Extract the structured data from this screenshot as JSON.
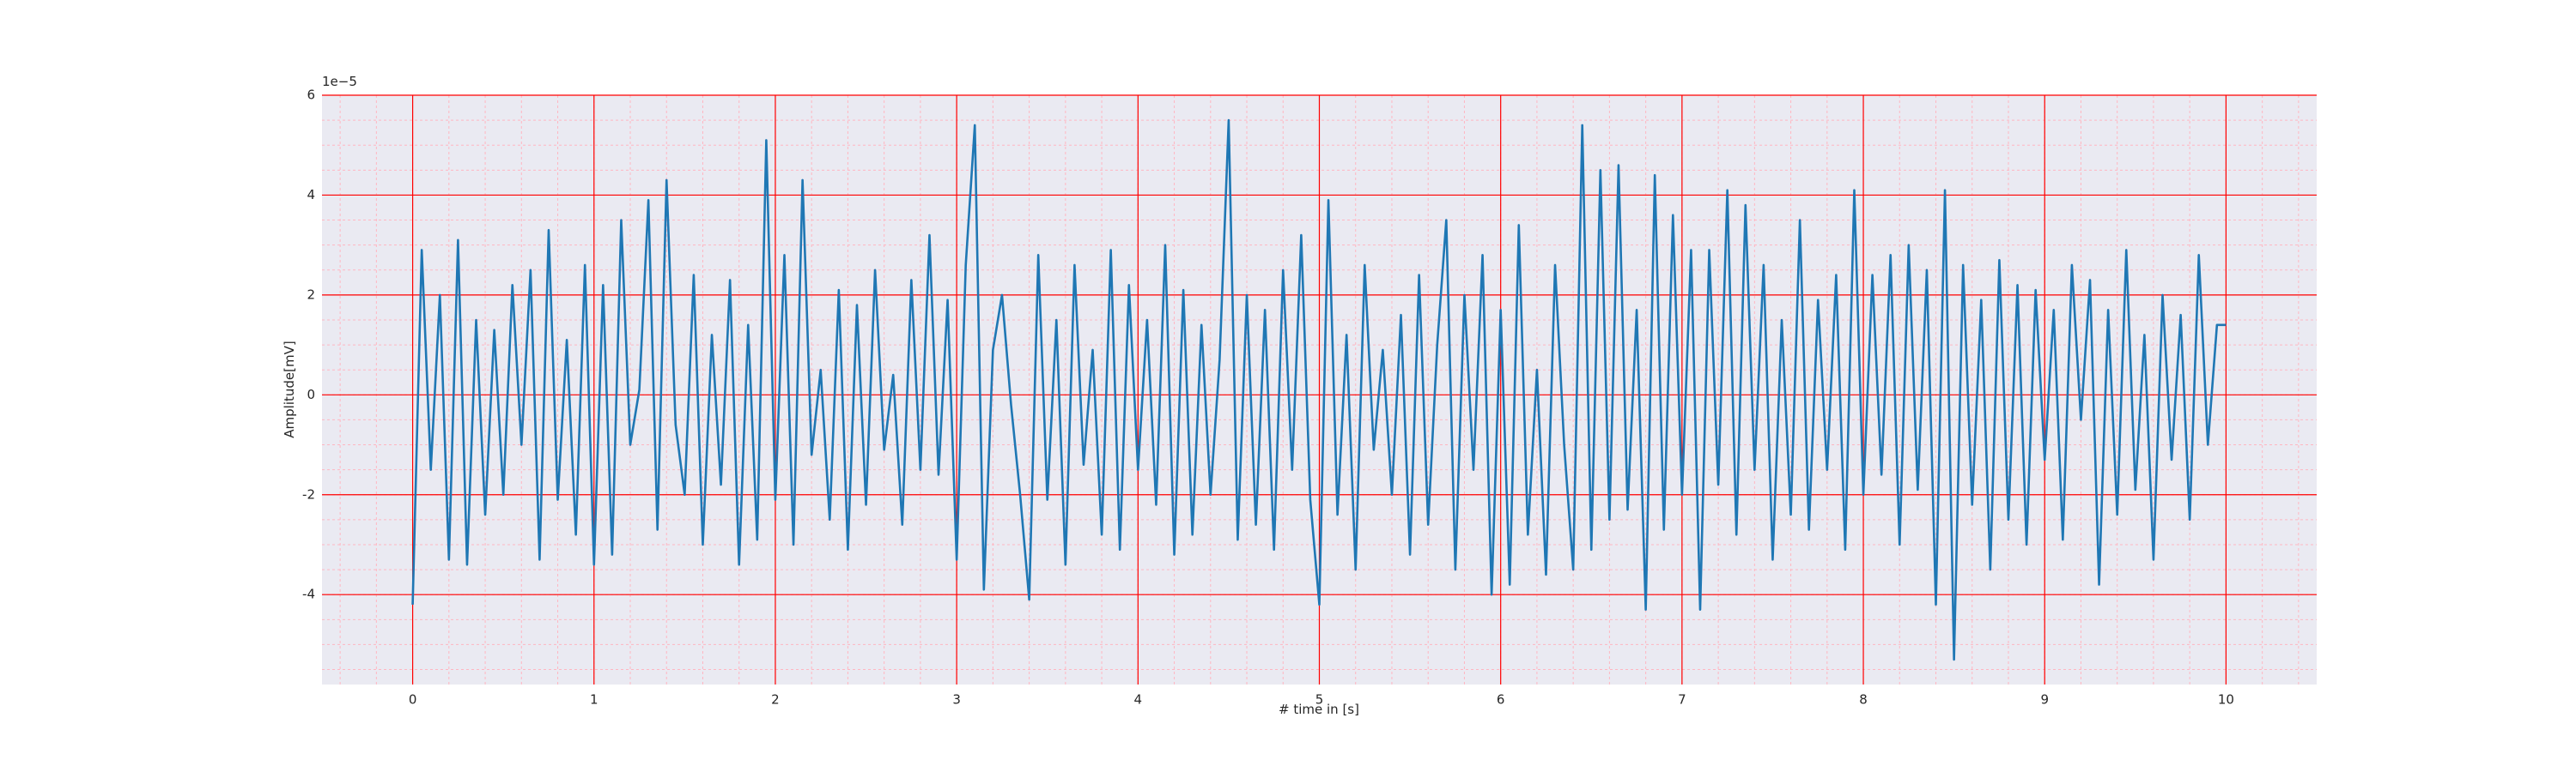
{
  "chart_data": {
    "type": "line",
    "xlabel": "# time in [s]",
    "ylabel": "Amplitude[mV]",
    "y_offset_label": "1e−5",
    "xlim": [
      -0.5,
      10.5
    ],
    "ylim": [
      -5.8,
      6
    ],
    "xticks": [
      0,
      1,
      2,
      3,
      4,
      5,
      6,
      7,
      8,
      9,
      10
    ],
    "yticks": [
      -4,
      -2,
      0,
      2,
      4,
      6
    ],
    "grid": true,
    "grid_color": "#ff0000",
    "minor_grid_color": "#ffb6c1",
    "background": "#eaeaf2",
    "x": [
      0,
      0.05,
      0.1,
      0.15,
      0.2,
      0.25,
      0.3,
      0.35,
      0.4,
      0.45,
      0.5,
      0.55,
      0.6,
      0.65,
      0.7,
      0.75,
      0.8,
      0.85,
      0.9,
      0.95,
      1,
      1.05,
      1.1,
      1.15,
      1.2,
      1.25,
      1.3,
      1.35,
      1.4,
      1.45,
      1.5,
      1.55,
      1.6,
      1.65,
      1.7,
      1.75,
      1.8,
      1.85,
      1.9,
      1.95,
      2,
      2.05,
      2.1,
      2.15,
      2.2,
      2.25,
      2.3,
      2.35,
      2.4,
      2.45,
      2.5,
      2.55,
      2.6,
      2.65,
      2.7,
      2.75,
      2.8,
      2.85,
      2.9,
      2.95,
      3,
      3.05,
      3.1,
      3.15,
      3.2,
      3.25,
      3.3,
      3.35,
      3.4,
      3.45,
      3.5,
      3.55,
      3.6,
      3.65,
      3.7,
      3.75,
      3.8,
      3.85,
      3.9,
      3.95,
      4,
      4.05,
      4.1,
      4.15,
      4.2,
      4.25,
      4.3,
      4.35,
      4.4,
      4.45,
      4.5,
      4.55,
      4.6,
      4.65,
      4.7,
      4.75,
      4.8,
      4.85,
      4.9,
      4.95,
      5,
      5.05,
      5.1,
      5.15,
      5.2,
      5.25,
      5.3,
      5.35,
      5.4,
      5.45,
      5.5,
      5.55,
      5.6,
      5.65,
      5.7,
      5.75,
      5.8,
      5.85,
      5.9,
      5.95,
      6,
      6.05,
      6.1,
      6.15,
      6.2,
      6.25,
      6.3,
      6.35,
      6.4,
      6.45,
      6.5,
      6.55,
      6.6,
      6.65,
      6.7,
      6.75,
      6.8,
      6.85,
      6.9,
      6.95,
      7,
      7.05,
      7.1,
      7.15,
      7.2,
      7.25,
      7.3,
      7.35,
      7.4,
      7.45,
      7.5,
      7.55,
      7.6,
      7.65,
      7.7,
      7.75,
      7.8,
      7.85,
      7.9,
      7.95,
      8,
      8.05,
      8.1,
      8.15,
      8.2,
      8.25,
      8.3,
      8.35,
      8.4,
      8.45,
      8.5,
      8.55,
      8.6,
      8.65,
      8.7,
      8.75,
      8.8,
      8.85,
      8.9,
      8.95,
      9,
      9.05,
      9.1,
      9.15,
      9.2,
      9.25,
      9.3,
      9.35,
      9.4,
      9.45,
      9.5,
      9.55,
      9.6,
      9.65,
      9.7,
      9.75,
      9.8,
      9.85,
      9.9,
      9.95,
      10
    ],
    "series": [
      {
        "color": "#1f77b4",
        "values": [
          -4.2,
          2.9,
          -1.5,
          2.0,
          -3.3,
          3.1,
          -3.4,
          1.5,
          -2.4,
          1.3,
          -2.0,
          2.2,
          -1.0,
          2.5,
          -3.3,
          3.3,
          -2.1,
          1.1,
          -2.8,
          2.6,
          -3.4,
          2.2,
          -3.2,
          3.5,
          -1.0,
          0.1,
          3.9,
          -2.7,
          4.3,
          -0.6,
          -2.0,
          2.4,
          -3.0,
          1.2,
          -1.8,
          2.3,
          -3.4,
          1.4,
          -2.9,
          5.1,
          -2.1,
          2.8,
          -3.0,
          4.3,
          -1.2,
          0.5,
          -2.5,
          2.1,
          -3.1,
          1.8,
          -2.2,
          2.5,
          -1.1,
          0.4,
          -2.6,
          2.3,
          -1.5,
          3.2,
          -1.6,
          1.9,
          -3.3,
          2.6,
          5.4,
          -3.9,
          0.9,
          2.0,
          -0.2,
          -2.0,
          -4.1,
          2.8,
          -2.1,
          1.5,
          -3.4,
          2.6,
          -1.4,
          0.9,
          -2.8,
          2.9,
          -3.1,
          2.2,
          -1.5,
          1.5,
          -2.2,
          3.0,
          -3.2,
          2.1,
          -2.8,
          1.4,
          -2.0,
          0.7,
          5.5,
          -2.9,
          2.0,
          -2.6,
          1.7,
          -3.1,
          2.5,
          -1.5,
          3.2,
          -2.1,
          -4.2,
          3.9,
          -2.4,
          1.2,
          -3.5,
          2.6,
          -1.1,
          0.9,
          -2.0,
          1.6,
          -3.2,
          2.4,
          -2.6,
          1.0,
          3.5,
          -3.5,
          2.0,
          -1.5,
          2.8,
          -4.0,
          1.7,
          -3.8,
          3.4,
          -2.8,
          0.5,
          -3.6,
          2.6,
          -1.0,
          -3.5,
          5.4,
          -3.1,
          4.5,
          -2.5,
          4.6,
          -2.3,
          1.7,
          -4.3,
          4.4,
          -2.7,
          3.6,
          -2.0,
          2.9,
          -4.3,
          2.9,
          -1.8,
          4.1,
          -2.8,
          3.8,
          -1.5,
          2.6,
          -3.3,
          1.5,
          -2.4,
          3.5,
          -2.7,
          1.9,
          -1.5,
          2.4,
          -3.1,
          4.1,
          -2.0,
          2.4,
          -1.6,
          2.8,
          -3.0,
          3.0,
          -1.9,
          2.5,
          -4.2,
          4.1,
          -5.3,
          2.6,
          -2.2,
          1.9,
          -3.5,
          2.7,
          -2.5,
          2.2,
          -3.0,
          2.1,
          -1.3,
          1.7,
          -2.9,
          2.6,
          -0.5,
          2.3,
          -3.8,
          1.7,
          -2.4,
          2.9,
          -1.9,
          1.2,
          -3.3,
          2.0,
          -1.3,
          1.6,
          -2.5,
          2.8,
          -1.0,
          1.4,
          1.4
        ]
      }
    ]
  }
}
